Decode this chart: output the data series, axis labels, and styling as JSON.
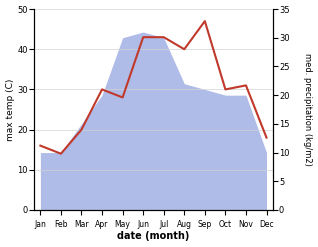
{
  "months": [
    "Jan",
    "Feb",
    "Mar",
    "Apr",
    "May",
    "Jun",
    "Jul",
    "Aug",
    "Sep",
    "Oct",
    "Nov",
    "Dec"
  ],
  "temp": [
    16,
    14,
    20,
    30,
    28,
    43,
    43,
    40,
    47,
    30,
    31,
    18
  ],
  "precip": [
    10,
    10,
    15,
    20,
    30,
    31,
    30,
    22,
    21,
    20,
    20,
    10
  ],
  "area_color": "#b0bce8",
  "line_color": "#c0392b",
  "ylabel_left": "max temp (C)",
  "ylabel_right": "med. precipitation (kg/m2)",
  "xlabel": "date (month)",
  "ylim_left": [
    0,
    50
  ],
  "ylim_right": [
    0,
    35
  ],
  "yticks_left": [
    0,
    10,
    20,
    30,
    40,
    50
  ],
  "yticks_right": [
    0,
    5,
    10,
    15,
    20,
    25,
    30,
    35
  ]
}
